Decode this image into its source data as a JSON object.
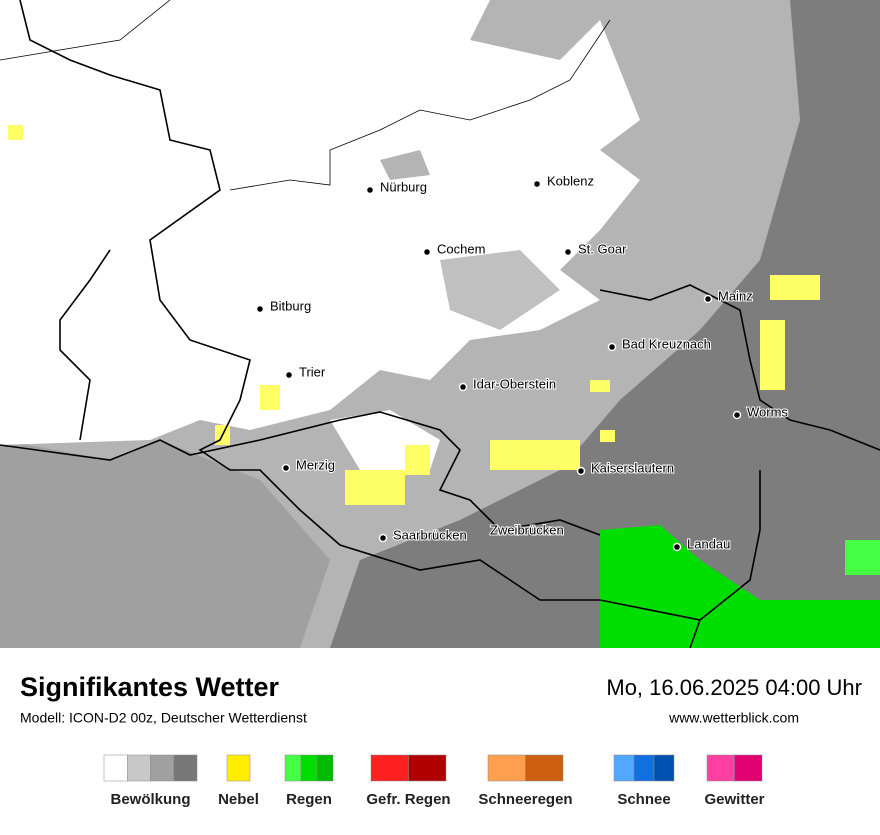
{
  "map": {
    "cities": [
      "Nürburg",
      "Koblenz",
      "Cochem",
      "St. Goar",
      "Bitburg",
      "Mainz",
      "Bad Kreuznach",
      "Trier",
      "Idar-Oberstein",
      "Worms",
      "Merzig",
      "Kaiserslautern",
      "Saarbrücken",
      "Zweibrücken",
      "Landau"
    ]
  },
  "footer": {
    "title": "Signifikantes Wetter",
    "subtitle": "Modell: ICON-D2 00z, Deutscher Wetterdienst",
    "date": "Mo, 16.06.2025 04:00 Uhr",
    "url": "www.wetterblick.com"
  },
  "legend": [
    {
      "label": "Bewölkung",
      "colors": [
        "#ffffff",
        "#c8c8c8",
        "#a0a0a0",
        "#787878"
      ]
    },
    {
      "label": "Nebel",
      "colors": [
        "#ffee00"
      ]
    },
    {
      "label": "Regen",
      "colors": [
        "#44ff44",
        "#00dd00",
        "#00bb00"
      ]
    },
    {
      "label": "Gefr. Regen",
      "colors": [
        "#ff2020",
        "#b00000"
      ]
    },
    {
      "label": "Schneeregen",
      "colors": [
        "#ffa050",
        "#cc6010"
      ]
    },
    {
      "label": "Schnee",
      "colors": [
        "#50a8ff",
        "#1070e0",
        "#0050b0"
      ]
    },
    {
      "label": "Gewitter",
      "colors": [
        "#ff40a0",
        "#e00070"
      ]
    }
  ]
}
